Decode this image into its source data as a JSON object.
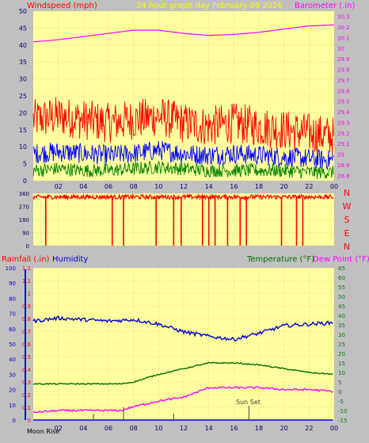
{
  "header": {
    "windspeed_label": "Windspeed (mph)",
    "graph_title": "24 hour graph day   February 09 2026",
    "barometer_label": "Barometer (.in)"
  },
  "compass": [
    "N",
    "W",
    "S",
    "E",
    "N"
  ],
  "lower_header": {
    "rainfall_label": "Rainfall (.in)",
    "humidity_label": "Humidity",
    "temperature_label": "Temperature (°F)",
    "dewpoint_label": "Dew Point (°F)"
  },
  "annotations": {
    "moon_rise": "Moon Rise",
    "sun_set": "Sun Set"
  },
  "colors": {
    "plot_bg": "#ffffa0",
    "frame": "#c0c0c0",
    "gust": "#ff0000",
    "windspeed": "#0000ff",
    "wind_low": "#008000",
    "barometer": "#ff00ff",
    "direction": "#ff0000",
    "humidity": "#0000cc",
    "temperature": "#007000",
    "dewpoint": "#ff00ff",
    "rain": "#0000ff",
    "title": "#ffff00"
  },
  "chart_data": [
    {
      "type": "line",
      "panel": "wind-barometer",
      "x_ticks": [
        "02",
        "04",
        "06",
        "08",
        "10",
        "12",
        "14",
        "16",
        "18",
        "20",
        "22",
        "00"
      ],
      "y_left": {
        "label": "Windspeed (mph)",
        "ticks": [
          "0",
          "5",
          "10",
          "15",
          "20",
          "25",
          "30",
          "35",
          "40",
          "45",
          "50"
        ],
        "range": [
          0,
          50
        ]
      },
      "y_right": {
        "label": "Barometer (.in)",
        "ticks": [
          "28.8",
          "28.9",
          "29",
          "29.1",
          "29.2",
          "29.3",
          "29.4",
          "29.5",
          "29.6",
          "29.7",
          "29.8",
          "29.9",
          "30",
          "30.1",
          "30.2",
          "30.3"
        ],
        "range": [
          28.75,
          30.35
        ]
      },
      "series": [
        {
          "name": "gust",
          "hours": [
            0,
            2,
            4,
            6,
            8,
            10,
            12,
            14,
            16,
            18,
            20,
            22,
            24
          ],
          "values": [
            18,
            19,
            18,
            17,
            18,
            19,
            17,
            16,
            17,
            16,
            15,
            14,
            13
          ]
        },
        {
          "name": "windspeed",
          "hours": [
            0,
            2,
            4,
            6,
            8,
            10,
            12,
            14,
            16,
            18,
            20,
            22,
            24
          ],
          "values": [
            8,
            8.5,
            8,
            7.5,
            8,
            9,
            8,
            7.5,
            8,
            7.5,
            7,
            6.5,
            6
          ]
        },
        {
          "name": "wind_low",
          "hours": [
            0,
            2,
            4,
            6,
            8,
            10,
            12,
            14,
            16,
            18,
            20,
            22,
            24
          ],
          "values": [
            3,
            3.5,
            3,
            3,
            3.5,
            4,
            3.5,
            3,
            3,
            3,
            3,
            2.5,
            2.5
          ]
        },
        {
          "name": "barometer",
          "hours": [
            0,
            2,
            4,
            6,
            8,
            10,
            12,
            14,
            16,
            18,
            20,
            22,
            24
          ],
          "values": [
            30.06,
            30.08,
            30.11,
            30.14,
            30.17,
            30.17,
            30.14,
            30.12,
            30.13,
            30.15,
            30.18,
            30.21,
            30.22
          ]
        }
      ]
    },
    {
      "type": "scatter",
      "panel": "wind-direction",
      "x_ticks": [
        "02",
        "04",
        "06",
        "08",
        "10",
        "12",
        "14",
        "16",
        "18",
        "20",
        "22",
        "00"
      ],
      "y_ticks": [
        "0",
        "90",
        "180",
        "270",
        "360"
      ],
      "range": [
        0,
        360
      ],
      "series": [
        {
          "name": "direction",
          "base_value": 335,
          "north_spikes_hours": [
            1.0,
            6.3,
            7.2,
            9.8,
            11.2,
            11.8,
            13.5,
            14.0,
            14.5,
            15.5,
            16.5,
            17.0,
            19.8,
            21.0,
            21.5
          ]
        }
      ]
    },
    {
      "type": "line",
      "panel": "humidity-temperature",
      "x_ticks": [
        "02",
        "04",
        "06",
        "08",
        "10",
        "12",
        "14",
        "16",
        "18",
        "20",
        "22",
        "00"
      ],
      "y_left": {
        "label": "Rainfall (.in)",
        "ticks": [
          "0",
          "0.1",
          "0.2",
          "0.3",
          "0.4",
          "0.5",
          "0.6",
          "0.7",
          "0.8",
          "0.9",
          "1",
          "1.1",
          "1.2"
        ],
        "range": [
          0,
          1.2
        ]
      },
      "y_left2": {
        "label": "Humidity",
        "ticks": [
          "0",
          "10",
          "20",
          "30",
          "40",
          "50",
          "60",
          "70",
          "80",
          "90",
          "100"
        ],
        "range": [
          0,
          100
        ]
      },
      "y_right": {
        "label": "Temperature (°F)",
        "ticks": [
          "-15",
          "-10",
          "-5",
          "0",
          "5",
          "10",
          "15",
          "20",
          "25",
          "30",
          "35",
          "40",
          "45",
          "50",
          "55",
          "60",
          "65"
        ],
        "range": [
          -15,
          65
        ]
      },
      "series": [
        {
          "name": "humidity",
          "hours": [
            0,
            2,
            4,
            6,
            8,
            10,
            12,
            14,
            16,
            18,
            20,
            22,
            24
          ],
          "values": [
            65,
            67,
            66,
            65,
            66,
            63,
            58,
            55,
            53,
            57,
            62,
            63,
            64
          ]
        },
        {
          "name": "temperature",
          "hours": [
            0,
            2,
            4,
            6,
            7,
            8,
            10,
            12,
            14,
            16,
            18,
            20,
            22,
            24
          ],
          "values": [
            4,
            4,
            4,
            4,
            4,
            5,
            9,
            12,
            15,
            15,
            14,
            12,
            10,
            9
          ]
        },
        {
          "name": "dew_point",
          "hours": [
            0,
            2,
            4,
            6,
            7,
            8,
            10,
            12,
            14,
            16,
            18,
            20,
            22,
            24
          ],
          "values": [
            -11,
            -10,
            -10,
            -10,
            -10,
            -8,
            -5,
            -3,
            2,
            2,
            2,
            1,
            1,
            0
          ]
        },
        {
          "name": "rain",
          "hours": [
            0,
            24
          ],
          "values": [
            0,
            0
          ]
        }
      ]
    }
  ]
}
